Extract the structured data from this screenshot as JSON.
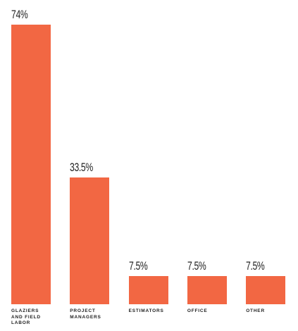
{
  "chart_data": {
    "type": "bar",
    "categories": [
      "GLAZIERS AND FIELD LABOR",
      "PROJECT MANAGERS",
      "ESTIMATORS",
      "OFFICE",
      "OTHER"
    ],
    "values": [
      74,
      33.5,
      7.5,
      7.5,
      7.5
    ],
    "value_labels": [
      "74%",
      "33.5%",
      "7.5%",
      "7.5%",
      "7.5%"
    ],
    "color": "#f26743"
  }
}
